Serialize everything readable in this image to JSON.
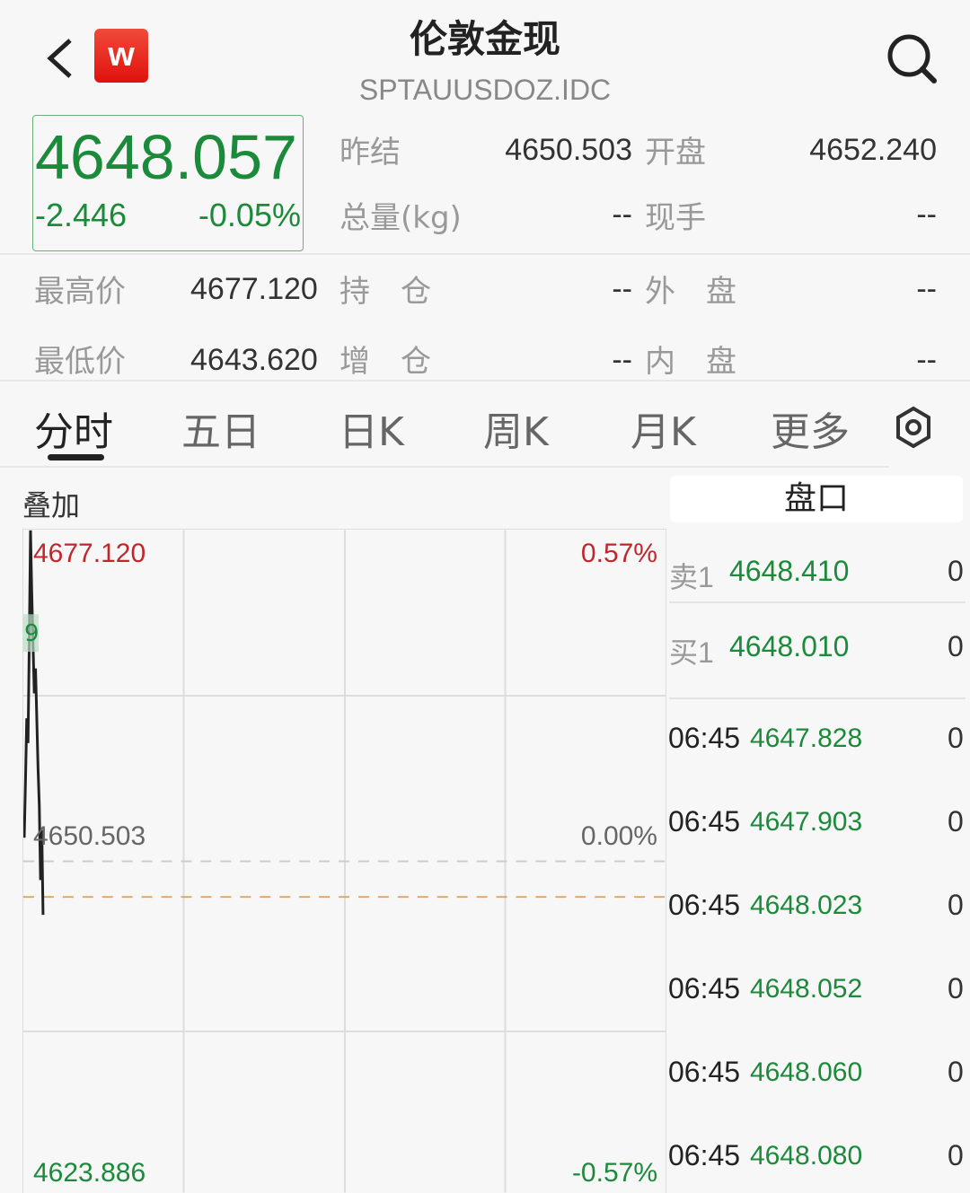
{
  "header": {
    "title": "伦敦金现",
    "code": "SPTAUUSDOZ.IDC",
    "logo_letter": "W"
  },
  "quote": {
    "price": "4648.057",
    "change": "-2.446",
    "change_pct": "-0.05%",
    "fields": [
      {
        "label": "昨结",
        "value": "4650.503"
      },
      {
        "label": "开盘",
        "value": "4652.240"
      },
      {
        "label": "总量(kg)",
        "value": "--"
      },
      {
        "label": "现手",
        "value": "--"
      },
      {
        "label": "最高价",
        "value": "4677.120"
      },
      {
        "label": "持　仓",
        "value": "--"
      },
      {
        "label": "外　盘",
        "value": "--"
      },
      {
        "label": "最低价",
        "value": "4643.620"
      },
      {
        "label": "增　仓",
        "value": "--"
      },
      {
        "label": "内　盘",
        "value": "--"
      }
    ]
  },
  "tabs": [
    {
      "label": "分时",
      "active": true
    },
    {
      "label": "五日"
    },
    {
      "label": "日K"
    },
    {
      "label": "周K"
    },
    {
      "label": "月K"
    },
    {
      "label": "更多"
    }
  ],
  "overlay_label": "叠加",
  "chart": {
    "max_label": "4677.120",
    "mid_label": "4650.503",
    "min_label": "4623.886",
    "max_pct": "0.57%",
    "mid_pct": "0.00%",
    "min_pct": "-0.57%",
    "ymax": 4677.12,
    "ymin": 4623.886,
    "prev_close": 4650.503,
    "current": 4647.64,
    "prices": [
      4652.4,
      4657,
      4662,
      4660,
      4668,
      4677.1,
      4672,
      4668,
      4664,
      4666,
      4662,
      4658,
      4655,
      4649,
      4653,
      4646.2
    ],
    "marker": "9",
    "up_color": "#c0272d",
    "down_color": "#1b8a3a"
  },
  "orderbook": {
    "title": "盘口",
    "levels": [
      {
        "label": "卖1",
        "price": "4648.410",
        "vol": "0"
      },
      {
        "label": "买1",
        "price": "4648.010",
        "vol": "0"
      }
    ],
    "trades": [
      {
        "time": "06:45",
        "price": "4647.828",
        "vol": "0"
      },
      {
        "time": "06:45",
        "price": "4647.903",
        "vol": "0"
      },
      {
        "time": "06:45",
        "price": "4648.023",
        "vol": "0"
      },
      {
        "time": "06:45",
        "price": "4648.052",
        "vol": "0"
      },
      {
        "time": "06:45",
        "price": "4648.060",
        "vol": "0"
      },
      {
        "time": "06:45",
        "price": "4648.080",
        "vol": "0"
      }
    ]
  }
}
